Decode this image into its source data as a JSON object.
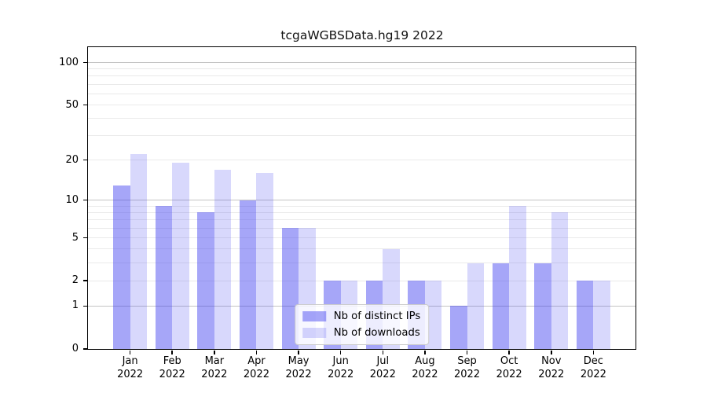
{
  "chart_data": {
    "type": "bar",
    "title": "tcgaWGBSData.hg19 2022",
    "categories": [
      "Jan",
      "Feb",
      "Mar",
      "Apr",
      "May",
      "Jun",
      "Jul",
      "Aug",
      "Sep",
      "Oct",
      "Nov",
      "Dec"
    ],
    "year": "2022",
    "series": [
      {
        "name": "Nb of distinct IPs",
        "color": "rgba(60,60,240,0.46)",
        "values": [
          13,
          9,
          8,
          10,
          6,
          2,
          2,
          2,
          1,
          3,
          3,
          2
        ]
      },
      {
        "name": "Nb of downloads",
        "color": "rgba(60,60,240,0.20)",
        "values": [
          22,
          19,
          17,
          16,
          6,
          2,
          4,
          2,
          3,
          9,
          8,
          2
        ]
      }
    ],
    "yscale": "log1p",
    "yticks": [
      100,
      50,
      20,
      10,
      5,
      2,
      1,
      0
    ],
    "ylim": [
      0,
      113
    ],
    "grid": {
      "major_lines": [
        1,
        10,
        100
      ],
      "minor_lines": [
        2,
        3,
        4,
        5,
        6,
        7,
        8,
        9,
        20,
        30,
        40,
        50,
        60,
        70,
        80,
        90
      ]
    },
    "legend_position": "lower center"
  },
  "colors": {
    "bar_distinct_ips": "rgba(60,60,240,0.46)",
    "bar_downloads": "rgba(60,60,240,0.20)",
    "grid_major": "#c4c4c4",
    "grid_minor": "#eaeaea",
    "spine": "#000000",
    "text": "#000000",
    "legend_border": "#cccccc",
    "legend_background": "rgba(255,255,255,0.8)"
  }
}
